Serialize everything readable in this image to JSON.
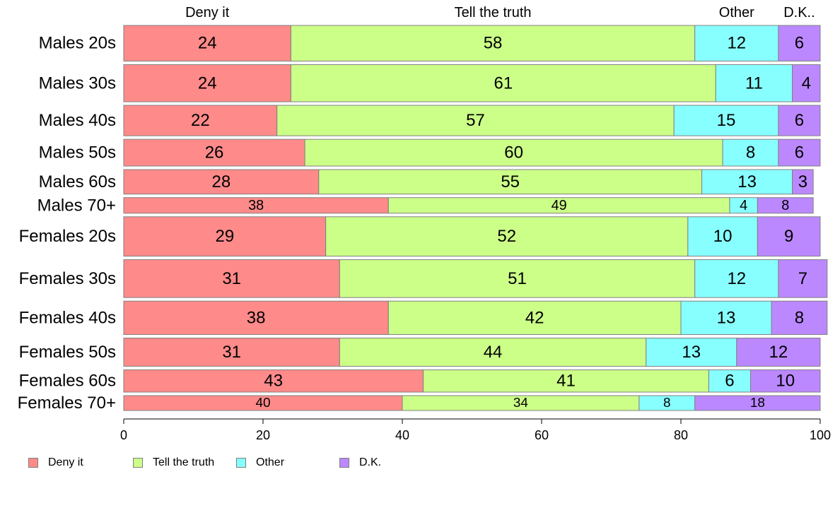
{
  "chart_data": {
    "type": "bar",
    "orientation": "horizontal",
    "stacked": true,
    "categories": [
      "Males 20s",
      "Males 30s",
      "Males 40s",
      "Males 50s",
      "Males 60s",
      "Males 70+",
      "Females 20s",
      "Females 30s",
      "Females 40s",
      "Females 50s",
      "Females 60s",
      "Females 70+"
    ],
    "row_weights": [
      48,
      50,
      41,
      36,
      33,
      21,
      53,
      51,
      45,
      38,
      30,
      20
    ],
    "series": [
      {
        "name": "Deny it",
        "color": "#ff8a8a",
        "values": [
          24,
          24,
          22,
          26,
          28,
          38,
          29,
          31,
          38,
          31,
          43,
          40
        ]
      },
      {
        "name": "Tell the truth",
        "color": "#ccff88",
        "values": [
          58,
          61,
          57,
          60,
          55,
          49,
          52,
          51,
          42,
          44,
          41,
          34
        ]
      },
      {
        "name": "Other",
        "color": "#88ffff",
        "values": [
          12,
          11,
          15,
          8,
          13,
          4,
          10,
          12,
          13,
          13,
          6,
          8
        ]
      },
      {
        "name": "D.K.",
        "color": "#bb88ff",
        "values": [
          6,
          4,
          6,
          6,
          3,
          8,
          9,
          7,
          8,
          12,
          10,
          18
        ]
      }
    ],
    "column_headers": [
      "Deny it",
      "Tell the truth",
      "Other",
      "D.K.."
    ],
    "xlim": [
      0,
      100
    ],
    "xticks": [
      "0",
      "20",
      "40",
      "60",
      "80",
      "100"
    ],
    "grid": false,
    "legend_position": "bottom-left"
  }
}
